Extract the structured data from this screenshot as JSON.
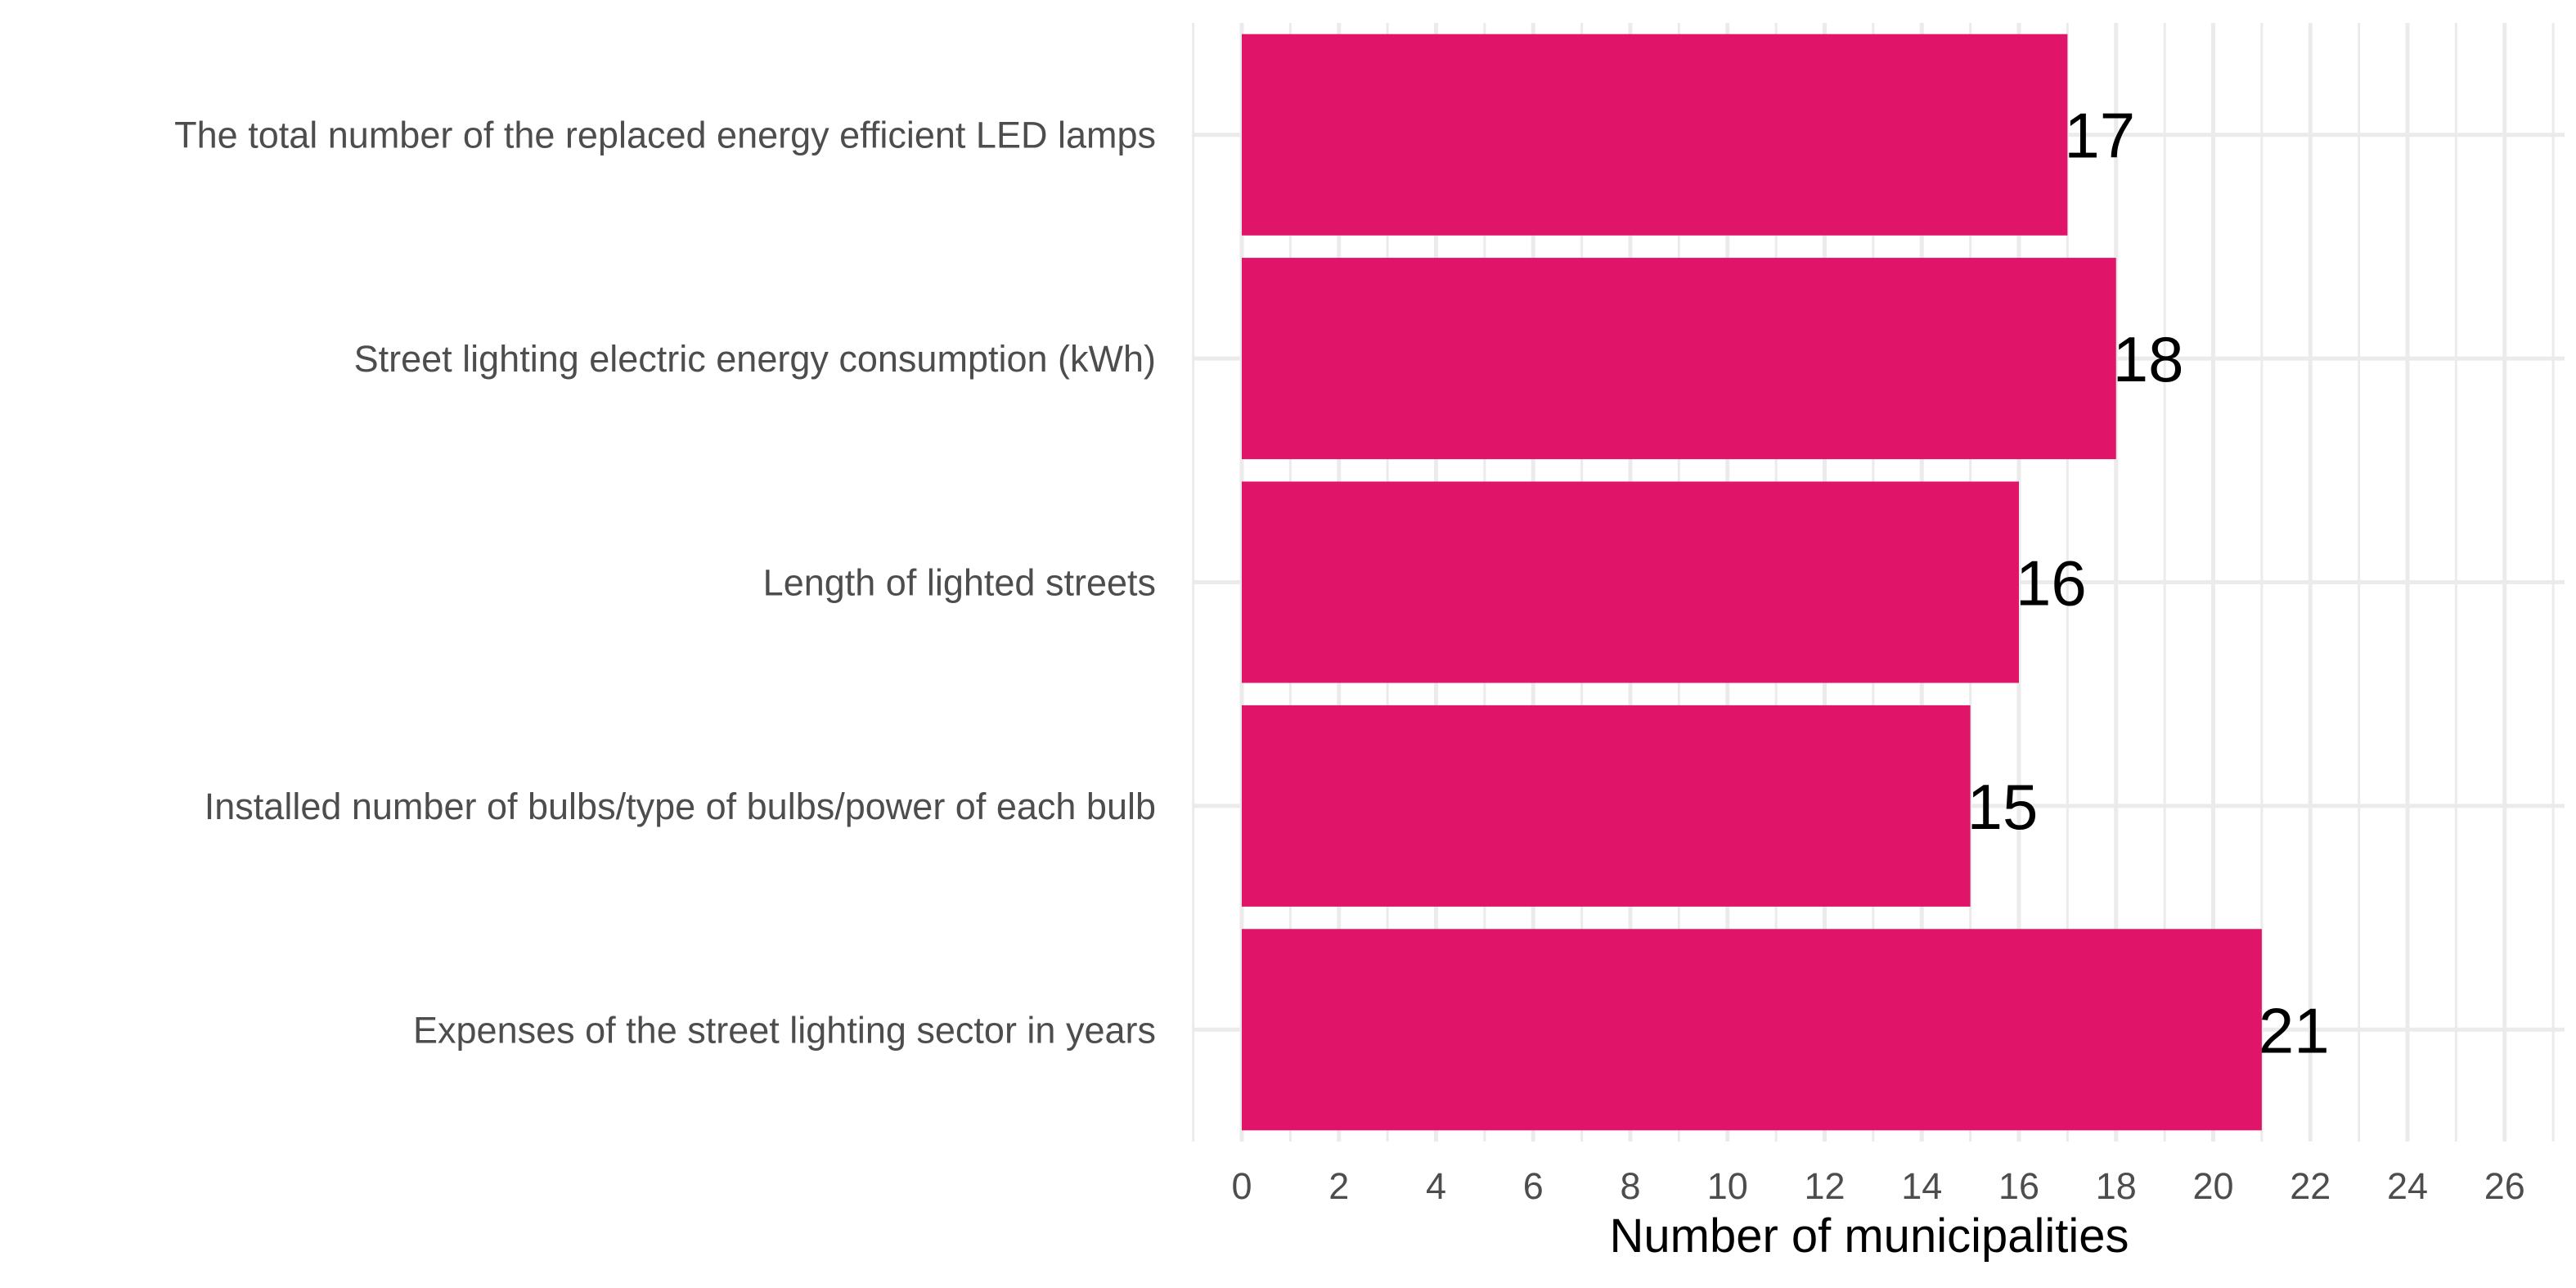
{
  "chart_data": {
    "type": "bar",
    "orientation": "horizontal",
    "categories": [
      "The total number of the replaced energy efficient LED lamps",
      "Street lighting electric energy consumption  (kWh)",
      "Length of lighted streets",
      "Installed number of bulbs/type of bulbs/power of each bulb",
      "Expenses of the street lighting sector in years"
    ],
    "values": [
      17,
      18,
      16,
      15,
      21
    ],
    "data_labels": [
      "17",
      "18",
      "16",
      "15",
      "21"
    ],
    "xticks": [
      0,
      2,
      4,
      6,
      8,
      10,
      12,
      14,
      16,
      18,
      20,
      22,
      24,
      26
    ],
    "xlim": [
      -1,
      27
    ],
    "xlabel": "Number of municipalities",
    "ylabel": "",
    "title": "",
    "grid": true,
    "bar_color": "#E0156A",
    "grid_color": "#EBEBEB"
  }
}
